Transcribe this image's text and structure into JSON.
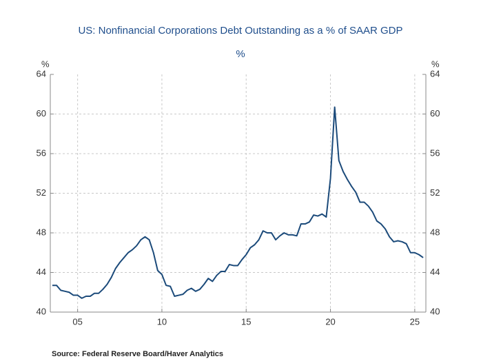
{
  "chart_data": {
    "type": "line",
    "title": "US: Nonfinancial Corporations Debt Outstanding as a % of SAAR GDP",
    "subtitle": "%",
    "y_label": "%",
    "y2_label": "%",
    "source": "Source:  Federal Reserve Board/Haver Analytics",
    "x": [
      2003.5,
      2003.75,
      2004,
      2004.25,
      2004.5,
      2004.75,
      2005,
      2005.25,
      2005.5,
      2005.75,
      2006,
      2006.25,
      2006.5,
      2006.75,
      2007,
      2007.25,
      2007.5,
      2007.75,
      2008,
      2008.25,
      2008.5,
      2008.75,
      2009,
      2009.25,
      2009.5,
      2009.75,
      2010,
      2010.25,
      2010.5,
      2010.75,
      2011,
      2011.25,
      2011.5,
      2011.75,
      2012,
      2012.25,
      2012.5,
      2012.75,
      2013,
      2013.25,
      2013.5,
      2013.75,
      2014,
      2014.25,
      2014.5,
      2014.75,
      2015,
      2015.25,
      2015.5,
      2015.75,
      2016,
      2016.25,
      2016.5,
      2016.75,
      2017,
      2017.25,
      2017.5,
      2017.75,
      2018,
      2018.25,
      2018.5,
      2018.75,
      2019,
      2019.25,
      2019.5,
      2019.75,
      2020,
      2020.25,
      2020.5,
      2020.75,
      2021,
      2021.25,
      2021.5,
      2021.75,
      2022,
      2022.25,
      2022.5,
      2022.75,
      2023,
      2023.25,
      2023.5,
      2023.75,
      2024,
      2024.25,
      2024.5,
      2024.75,
      2025,
      2025.25,
      2025.5
    ],
    "series": [
      {
        "color": "#1b4a7a",
        "values": [
          42.7,
          42.7,
          42.2,
          42.1,
          42.0,
          41.7,
          41.7,
          41.4,
          41.6,
          41.6,
          41.9,
          41.9,
          42.3,
          42.8,
          43.5,
          44.4,
          45.0,
          45.5,
          46.0,
          46.3,
          46.7,
          47.3,
          47.6,
          47.3,
          46.0,
          44.2,
          43.8,
          42.7,
          42.6,
          41.6,
          41.7,
          41.8,
          42.2,
          42.4,
          42.1,
          42.3,
          42.8,
          43.4,
          43.1,
          43.7,
          44.1,
          44.1,
          44.8,
          44.7,
          44.7,
          45.3,
          45.8,
          46.5,
          46.8,
          47.3,
          48.2,
          48.0,
          48.0,
          47.3,
          47.7,
          48.0,
          47.8,
          47.8,
          47.7,
          48.9,
          48.9,
          49.1,
          49.8,
          49.7,
          49.9,
          49.6,
          53.5,
          60.7,
          55.3,
          54.2,
          53.4,
          52.7,
          52.1,
          51.1,
          51.1,
          50.7,
          50.1,
          49.2,
          48.9,
          48.4,
          47.6,
          47.1,
          47.2,
          47.1,
          46.9,
          46.0,
          46.0,
          45.8,
          45.5
        ]
      }
    ],
    "xlim": [
      2003.38,
      2025.66
    ],
    "xticks": [
      {
        "value": 2005,
        "label": "05"
      },
      {
        "value": 2010,
        "label": "10"
      },
      {
        "value": 2015,
        "label": "15"
      },
      {
        "value": 2020,
        "label": "20"
      },
      {
        "value": 2025,
        "label": "25"
      }
    ],
    "ylim": [
      40,
      64
    ],
    "yticks": [
      40,
      44,
      48,
      52,
      56,
      60,
      64
    ],
    "y2lim": [
      40,
      64
    ],
    "y2ticks": [
      40,
      44,
      48,
      52,
      56,
      60,
      64
    ],
    "grid": true
  }
}
